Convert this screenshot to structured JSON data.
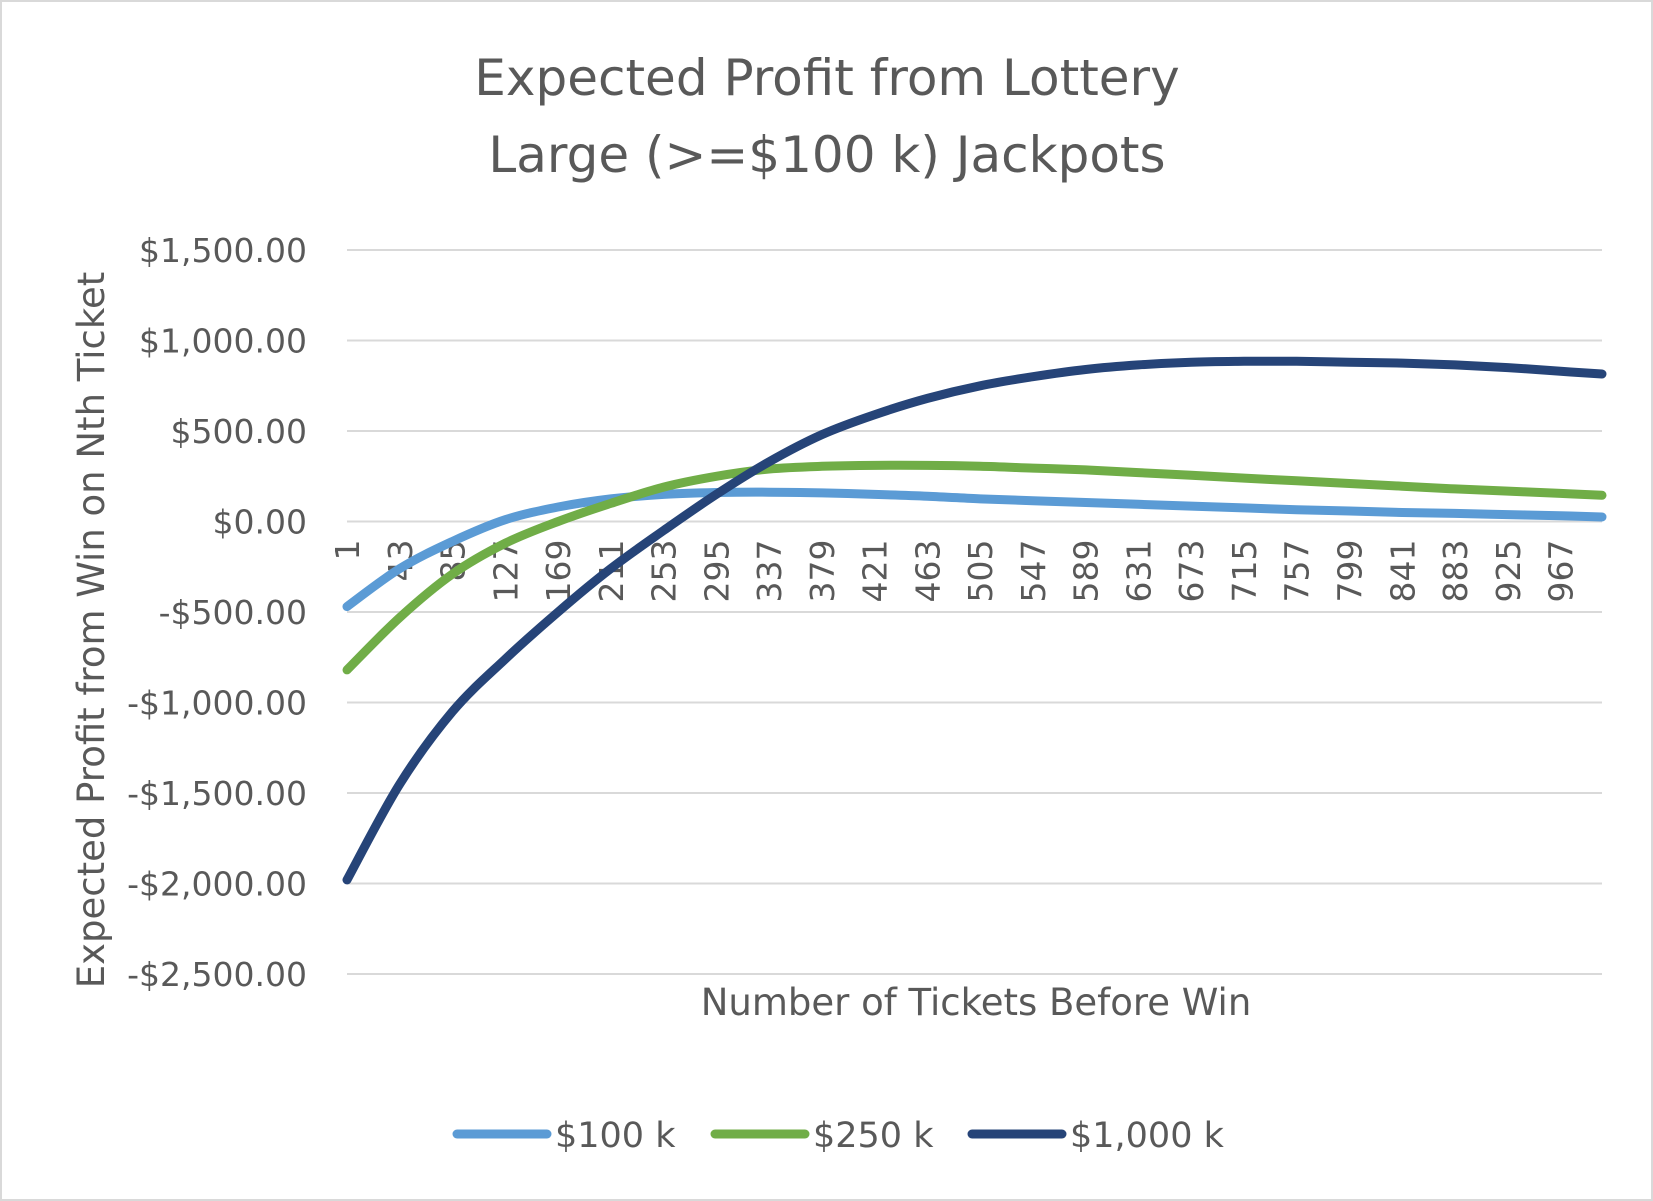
{
  "chart_data": {
    "type": "line",
    "title": "Expected Profit from Lottery",
    "subtitle": "Large (>=$100 k) Jackpots",
    "xlabel": "Number of Tickets Before Win",
    "ylabel": "Expected Profit from Win on Nth Ticket",
    "ylim": [
      -2500,
      1500
    ],
    "y_ticks": [
      1500,
      1000,
      500,
      0,
      -500,
      -1000,
      -1500,
      -2000,
      -2500
    ],
    "y_tick_labels": [
      "$1,500.00",
      "$1,000.00",
      "$500.00",
      "$0.00",
      "-$500.00",
      "-$1,000.00",
      "-$1,500.00",
      "-$2,000.00",
      "-$2,500.00"
    ],
    "xlim": [
      1,
      1000
    ],
    "x_tick_labels": [
      "1",
      "43",
      "85",
      "127",
      "169",
      "211",
      "253",
      "295",
      "337",
      "379",
      "421",
      "463",
      "505",
      "547",
      "589",
      "631",
      "673",
      "715",
      "757",
      "799",
      "841",
      "883",
      "925",
      "967"
    ],
    "grid": true,
    "legend_position": "bottom",
    "series": [
      {
        "name": "$100 k",
        "color": "#5b9bd5",
        "x": [
          1,
          43,
          85,
          127,
          169,
          211,
          253,
          295,
          337,
          379,
          421,
          463,
          505,
          547,
          589,
          631,
          673,
          715,
          757,
          799,
          841,
          883,
          925,
          967,
          1000
        ],
        "values": [
          -470,
          -260,
          -110,
          10,
          80,
          125,
          150,
          160,
          162,
          158,
          150,
          140,
          125,
          115,
          105,
          95,
          85,
          75,
          65,
          58,
          50,
          45,
          38,
          32,
          25
        ]
      },
      {
        "name": "$250 k",
        "color": "#70ad47",
        "x": [
          1,
          43,
          85,
          127,
          169,
          211,
          253,
          295,
          337,
          379,
          421,
          463,
          505,
          547,
          589,
          631,
          673,
          715,
          757,
          799,
          841,
          883,
          925,
          967,
          1000
        ],
        "values": [
          -820,
          -530,
          -290,
          -120,
          0,
          100,
          190,
          250,
          290,
          305,
          310,
          310,
          305,
          295,
          285,
          270,
          255,
          240,
          225,
          210,
          195,
          180,
          168,
          155,
          145
        ]
      },
      {
        "name": "$1,000 k",
        "color": "#264478",
        "x": [
          1,
          43,
          85,
          127,
          169,
          211,
          253,
          295,
          337,
          379,
          421,
          463,
          505,
          547,
          589,
          631,
          673,
          715,
          757,
          799,
          841,
          883,
          925,
          967,
          1000
        ],
        "values": [
          -1980,
          -1450,
          -1050,
          -760,
          -500,
          -260,
          -50,
          150,
          330,
          480,
          590,
          680,
          750,
          800,
          840,
          865,
          880,
          885,
          885,
          880,
          875,
          865,
          850,
          830,
          815
        ]
      }
    ]
  }
}
